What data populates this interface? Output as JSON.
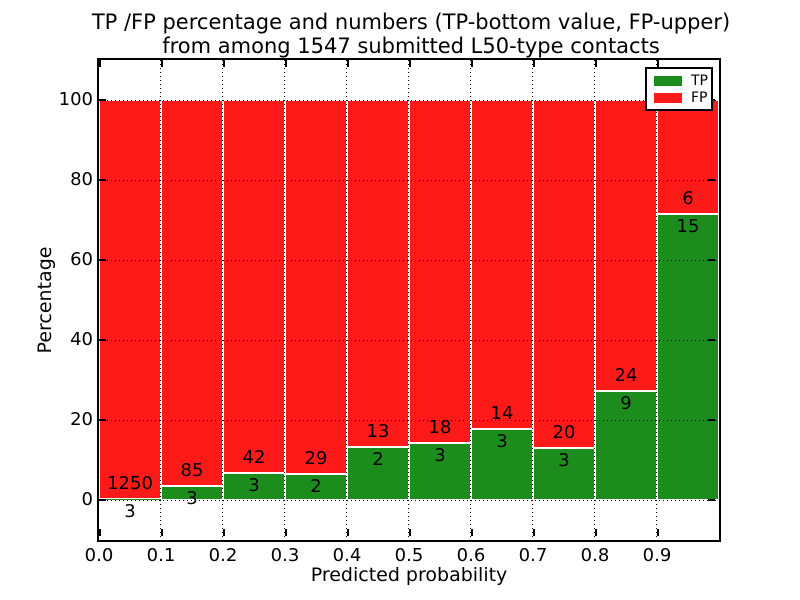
{
  "title": {
    "line1": "TP /FP percentage and numbers (TP-bottom value, FP-upper)",
    "line2": "from among 1547 submitted L50-type contacts"
  },
  "axes": {
    "xlabel": "Predicted probability",
    "ylabel": "Percentage"
  },
  "colors": {
    "tp_green": "#1c8c1c",
    "fp_red": "#ff1a1a",
    "background": "#ffffff",
    "grid": "#000000",
    "bar_edge": "#ffffff",
    "text": "#000000"
  },
  "chart_data": {
    "type": "bar",
    "stacked": true,
    "title": "TP /FP percentage and numbers (TP-bottom value, FP-upper) from among 1547 submitted L50-type contacts",
    "total_submitted": 1547,
    "xlabel": "Predicted probability",
    "ylabel": "Percentage",
    "xlim": [
      0.0,
      1.0
    ],
    "ylim": [
      -10,
      110
    ],
    "x_ticks": [
      "0.0",
      "0.1",
      "0.2",
      "0.3",
      "0.4",
      "0.5",
      "0.6",
      "0.7",
      "0.8",
      "0.9"
    ],
    "x_tick_values": [
      0.0,
      0.1,
      0.2,
      0.3,
      0.4,
      0.5,
      0.6,
      0.7,
      0.8,
      0.9
    ],
    "y_ticks": [
      "0",
      "20",
      "40",
      "60",
      "80",
      "100"
    ],
    "y_tick_values": [
      0,
      20,
      40,
      60,
      80,
      100
    ],
    "grid": true,
    "grid_style": "dotted",
    "bin_edges": [
      0.0,
      0.1,
      0.2,
      0.3,
      0.4,
      0.5,
      0.6,
      0.7,
      0.8,
      0.9,
      1.0
    ],
    "bin_width": 0.1,
    "series": [
      {
        "name": "TP",
        "color": "#1c8c1c",
        "counts": [
          3,
          3,
          3,
          2,
          2,
          3,
          3,
          3,
          9,
          15
        ],
        "percentages": [
          0.24,
          3.41,
          6.67,
          6.45,
          13.33,
          14.29,
          17.65,
          13.04,
          27.27,
          71.43
        ]
      },
      {
        "name": "FP",
        "color": "#ff1a1a",
        "counts": [
          1250,
          85,
          42,
          29,
          13,
          18,
          14,
          20,
          24,
          6
        ],
        "percentages": [
          99.76,
          96.59,
          93.33,
          93.55,
          86.67,
          85.71,
          82.35,
          86.96,
          72.73,
          28.57
        ]
      }
    ],
    "legend": {
      "position": "upper-right",
      "entries": [
        {
          "label": "TP",
          "color": "#1c8c1c"
        },
        {
          "label": "FP",
          "color": "#ff1a1a"
        }
      ]
    }
  }
}
